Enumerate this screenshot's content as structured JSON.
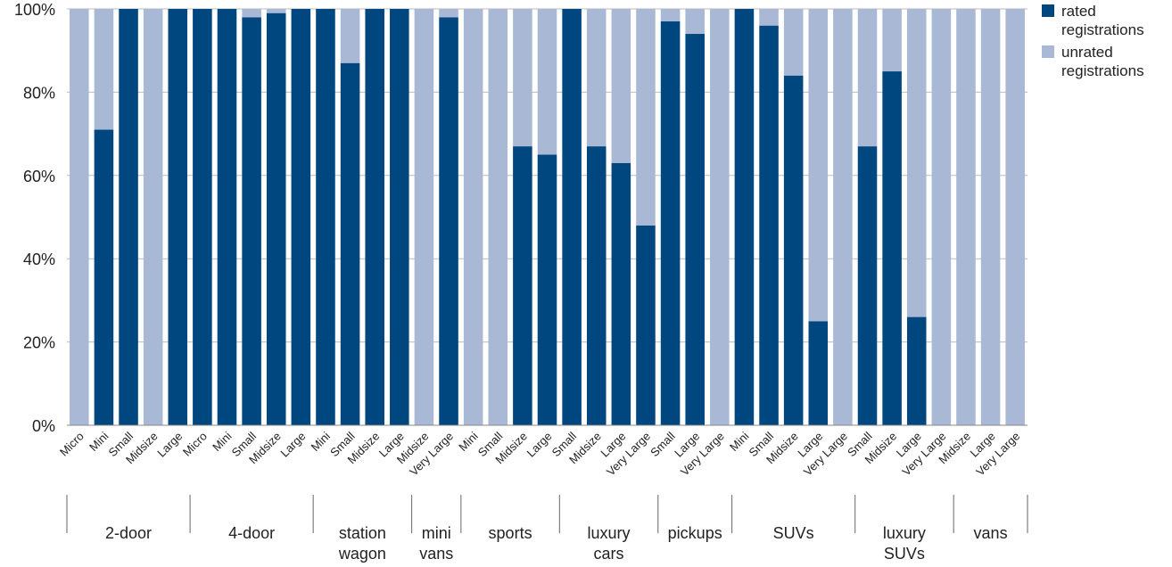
{
  "chart_data": {
    "type": "stacked_bar",
    "groups": [
      {
        "name": [
          "2-door"
        ],
        "categories": [
          "Micro",
          "Mini",
          "Small",
          "Midsize",
          "Large"
        ]
      },
      {
        "name": [
          "4-door"
        ],
        "categories": [
          "Micro",
          "Mini",
          "Small",
          "Midsize",
          "Large"
        ]
      },
      {
        "name": [
          "station",
          "wagon"
        ],
        "categories": [
          "Mini",
          "Small",
          "Midsize",
          "Large"
        ]
      },
      {
        "name": [
          "mini",
          "vans"
        ],
        "categories": [
          "Midsize",
          "Very Large"
        ]
      },
      {
        "name": [
          "sports"
        ],
        "categories": [
          "Mini",
          "Small",
          "Midsize",
          "Large"
        ]
      },
      {
        "name": [
          "luxury",
          "cars"
        ],
        "categories": [
          "Small",
          "Midsize",
          "Large",
          "Very Large"
        ]
      },
      {
        "name": [
          "pickups"
        ],
        "categories": [
          "Small",
          "Large",
          "Very Large"
        ]
      },
      {
        "name": [
          "SUVs"
        ],
        "categories": [
          "Mini",
          "Small",
          "Midsize",
          "Large",
          "Very Large"
        ]
      },
      {
        "name": [
          "luxury",
          "SUVs"
        ],
        "categories": [
          "Small",
          "Midsize",
          "Large",
          "Very Large"
        ]
      },
      {
        "name": [
          "vans"
        ],
        "categories": [
          "Midsize",
          "Large",
          "Very Large"
        ]
      }
    ],
    "series": [
      {
        "name": "rated registrations",
        "color": "#00467f",
        "values": [
          0,
          71,
          100,
          0,
          100,
          100,
          100,
          98,
          99,
          100,
          100,
          87,
          100,
          100,
          0,
          98,
          0,
          0,
          67,
          65,
          100,
          67,
          63,
          48,
          97,
          94,
          0,
          100,
          96,
          84,
          25,
          0,
          67,
          85,
          26,
          0,
          0,
          0,
          0
        ]
      },
      {
        "name": "unrated registrations",
        "color": "#a9b8d4",
        "values": [
          100,
          29,
          0,
          100,
          0,
          0,
          0,
          2,
          1,
          0,
          0,
          13,
          0,
          0,
          100,
          2,
          100,
          100,
          33,
          35,
          0,
          33,
          37,
          52,
          3,
          6,
          100,
          0,
          4,
          16,
          75,
          100,
          33,
          15,
          74,
          100,
          100,
          100,
          100
        ]
      }
    ],
    "ylim": [
      0,
      100
    ],
    "yticks": [
      {
        "value": 0,
        "label": "0%"
      },
      {
        "value": 20,
        "label": "20%"
      },
      {
        "value": 40,
        "label": "40%"
      },
      {
        "value": 60,
        "label": "60%"
      },
      {
        "value": 80,
        "label": "80%"
      },
      {
        "value": 100,
        "label": "100%"
      }
    ],
    "grid": true,
    "legend": "right"
  }
}
